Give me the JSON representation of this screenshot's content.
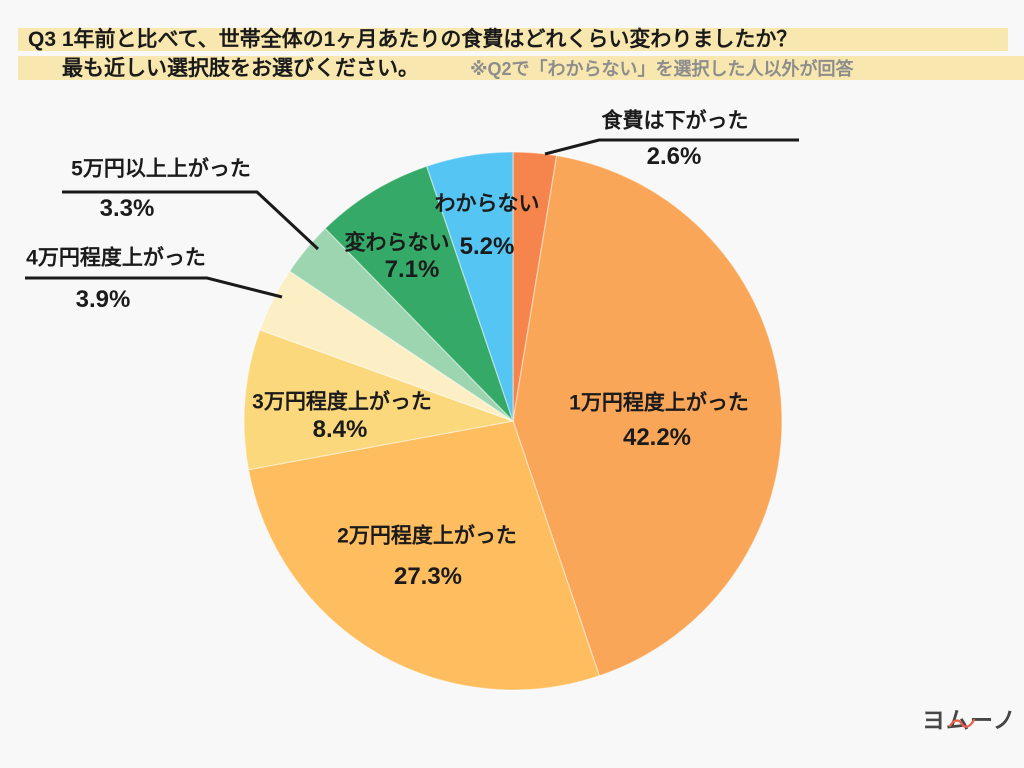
{
  "header": {
    "question_line1": "Q3 1年前と比べて、世帯全体の1ヶ月あたりの食費はどれくらい変わりましたか？",
    "question_line2": "最も近しい選択肢をお選びください。",
    "note": "※Q2で「わからない」を選択した人以外が回答",
    "highlight_color": "#F8E7AE"
  },
  "chart_data": {
    "type": "pie",
    "start_angle_deg": 0,
    "direction": "clockwise",
    "background_color": "#F8F8F8",
    "legend_position": "labels-on-and-around-slices",
    "segments": [
      {
        "label": "食費は下がった",
        "value": 2.6,
        "pct_label": "2.6%",
        "color": "#F6854D"
      },
      {
        "label": "1万円程度上がった",
        "value": 42.2,
        "pct_label": "42.2%",
        "color": "#FAA658"
      },
      {
        "label": "2万円程度上がった",
        "value": 27.3,
        "pct_label": "27.3%",
        "color": "#FEBE5F"
      },
      {
        "label": "3万円程度上がった",
        "value": 8.4,
        "pct_label": "8.4%",
        "color": "#FBD87B"
      },
      {
        "label": "4万円程度上がった",
        "value": 3.9,
        "pct_label": "3.9%",
        "color": "#FCEFC5"
      },
      {
        "label": "5万円以上上がった",
        "value": 3.3,
        "pct_label": "3.3%",
        "color": "#9DD5B0"
      },
      {
        "label": "変わらない",
        "value": 7.1,
        "pct_label": "7.1%",
        "color": "#35A968"
      },
      {
        "label": "わからない",
        "value": 5.2,
        "pct_label": "5.2%",
        "color": "#55C6F3"
      }
    ]
  },
  "logo": {
    "text": "ヨムーノ",
    "text_color": "#464646",
    "accent_color": "#E8604C"
  }
}
